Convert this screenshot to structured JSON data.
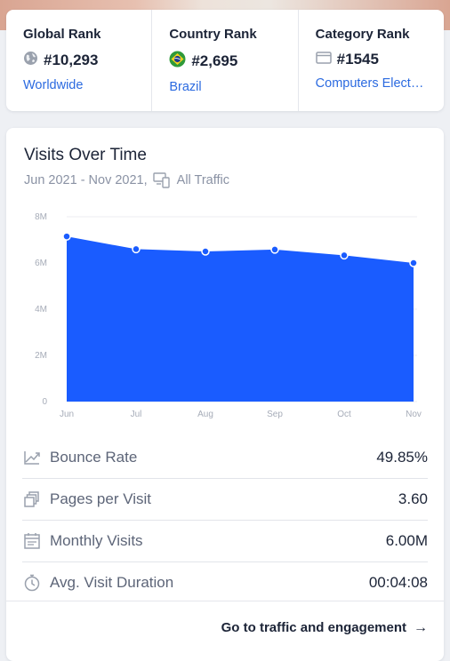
{
  "ranks": [
    {
      "title": "Global Rank",
      "value": "#10,293",
      "link": "Worldwide",
      "icon": "globe-icon"
    },
    {
      "title": "Country Rank",
      "value": "#2,695",
      "link": "Brazil",
      "icon": "brazil-flag-icon"
    },
    {
      "title": "Category Rank",
      "value": "#1545",
      "link": "Computers Elect…",
      "icon": "category-icon"
    }
  ],
  "visits": {
    "title": "Visits Over Time",
    "date_range": "Jun 2021 - Nov 2021,",
    "traffic_filter": "All Traffic"
  },
  "chart_data": {
    "type": "area",
    "categories": [
      "Jun",
      "Jul",
      "Aug",
      "Sep",
      "Oct",
      "Nov"
    ],
    "values": [
      7.15,
      6.6,
      6.5,
      6.58,
      6.33,
      6.0
    ],
    "unit": "M",
    "y_ticks": [
      "0",
      "2M",
      "4M",
      "6M",
      "8M"
    ],
    "ylim": [
      0,
      8
    ],
    "grid": true,
    "color": "#1a5cff"
  },
  "metrics": [
    {
      "label": "Bounce Rate",
      "value": "49.85%",
      "icon": "bounce-rate-icon"
    },
    {
      "label": "Pages per Visit",
      "value": "3.60",
      "icon": "pages-icon"
    },
    {
      "label": "Monthly Visits",
      "value": "6.00M",
      "icon": "calendar-icon"
    },
    {
      "label": "Avg. Visit Duration",
      "value": "00:04:08",
      "icon": "stopwatch-icon"
    }
  ],
  "footer": {
    "link_label": "Go to traffic and engagement"
  },
  "colors": {
    "accent": "#1a5cff",
    "link": "#2b6ae0"
  }
}
